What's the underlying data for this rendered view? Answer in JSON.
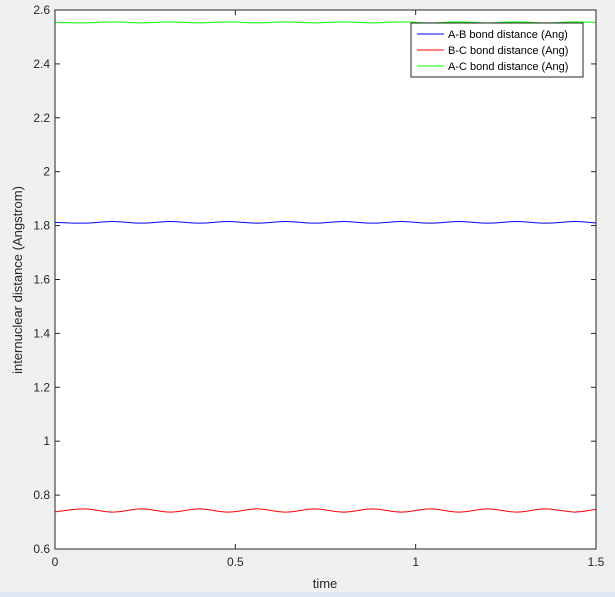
{
  "chart_data": {
    "type": "line",
    "title": "",
    "xlabel": "time",
    "ylabel": "internuclear distance (Angstrom)",
    "xlim": [
      0,
      1.5
    ],
    "ylim": [
      0.6,
      2.6
    ],
    "x_ticks": [
      "0",
      "0.5",
      "1",
      "1.5"
    ],
    "y_ticks": [
      "0.6",
      "0.8",
      "1",
      "1.2",
      "1.4",
      "1.6",
      "1.8",
      "2",
      "2.2",
      "2.4",
      "2.6"
    ],
    "x_tick_values": [
      0,
      0.5,
      1,
      1.5
    ],
    "y_tick_values": [
      0.6,
      0.8,
      1.0,
      1.2,
      1.4,
      1.6,
      1.8,
      2.0,
      2.2,
      2.4,
      2.6
    ],
    "grid": false,
    "legend_position": "top-right",
    "series": [
      {
        "name": "A-B bond distance (Ang)",
        "color": "#0000ff",
        "x": [
          0,
          0.08,
          0.16,
          0.24,
          0.32,
          0.4,
          0.48,
          0.56,
          0.64,
          0.72,
          0.8,
          0.88,
          0.96,
          1.04,
          1.12,
          1.2,
          1.28,
          1.36,
          1.44,
          1.5
        ],
        "values": [
          1.812,
          1.809,
          1.815,
          1.809,
          1.815,
          1.809,
          1.815,
          1.809,
          1.815,
          1.809,
          1.815,
          1.809,
          1.815,
          1.809,
          1.815,
          1.809,
          1.815,
          1.809,
          1.815,
          1.81
        ]
      },
      {
        "name": "B-C bond distance (Ang)",
        "color": "#ff0000",
        "x": [
          0,
          0.08,
          0.16,
          0.24,
          0.32,
          0.4,
          0.48,
          0.56,
          0.64,
          0.72,
          0.8,
          0.88,
          0.96,
          1.04,
          1.12,
          1.2,
          1.28,
          1.36,
          1.44,
          1.5
        ],
        "values": [
          0.738,
          0.749,
          0.737,
          0.749,
          0.737,
          0.749,
          0.737,
          0.749,
          0.737,
          0.749,
          0.737,
          0.749,
          0.737,
          0.749,
          0.737,
          0.749,
          0.737,
          0.749,
          0.737,
          0.747
        ]
      },
      {
        "name": "A-C bond distance (Ang)",
        "color": "#00ff00",
        "x": [
          0,
          0.08,
          0.16,
          0.24,
          0.32,
          0.4,
          0.48,
          0.56,
          0.64,
          0.72,
          0.8,
          0.88,
          0.96,
          1.04,
          1.12,
          1.2,
          1.28,
          1.36,
          1.44,
          1.5
        ],
        "values": [
          2.555,
          2.552,
          2.556,
          2.552,
          2.556,
          2.552,
          2.556,
          2.552,
          2.556,
          2.552,
          2.556,
          2.552,
          2.556,
          2.552,
          2.556,
          2.552,
          2.556,
          2.552,
          2.556,
          2.554
        ]
      }
    ]
  }
}
